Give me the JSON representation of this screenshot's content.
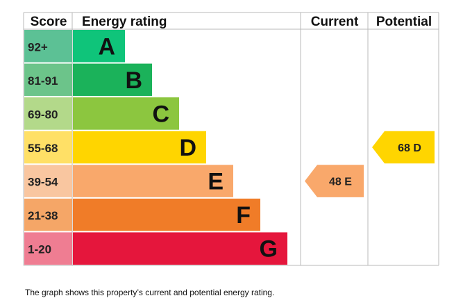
{
  "headers": {
    "score": "Score",
    "rating": "Energy rating",
    "current": "Current",
    "potential": "Potential"
  },
  "caption": "The graph shows this property’s current and potential energy rating.",
  "chart_data": {
    "type": "bar",
    "bands": [
      {
        "score": "92+",
        "letter": "A",
        "bar_color": "#0fc47a",
        "score_color": "#5cc195"
      },
      {
        "score": "81-91",
        "letter": "B",
        "bar_color": "#1bb25a",
        "score_color": "#6cc48a"
      },
      {
        "score": "69-80",
        "letter": "C",
        "bar_color": "#8cc63f",
        "score_color": "#b3d98a"
      },
      {
        "score": "55-68",
        "letter": "D",
        "bar_color": "#ffd500",
        "score_color": "#ffe066"
      },
      {
        "score": "39-54",
        "letter": "E",
        "bar_color": "#f9a86b",
        "score_color": "#f9c6a0"
      },
      {
        "score": "21-38",
        "letter": "F",
        "bar_color": "#f07c28",
        "score_color": "#f5a667"
      },
      {
        "score": "1-20",
        "letter": "G",
        "bar_color": "#e5163c",
        "score_color": "#ef7d92"
      }
    ],
    "current": {
      "value": 48,
      "letter": "E",
      "label": "48  E",
      "color": "#f9a86b"
    },
    "potential": {
      "value": 68,
      "letter": "D",
      "label": "68  D",
      "color": "#ffd500"
    }
  }
}
